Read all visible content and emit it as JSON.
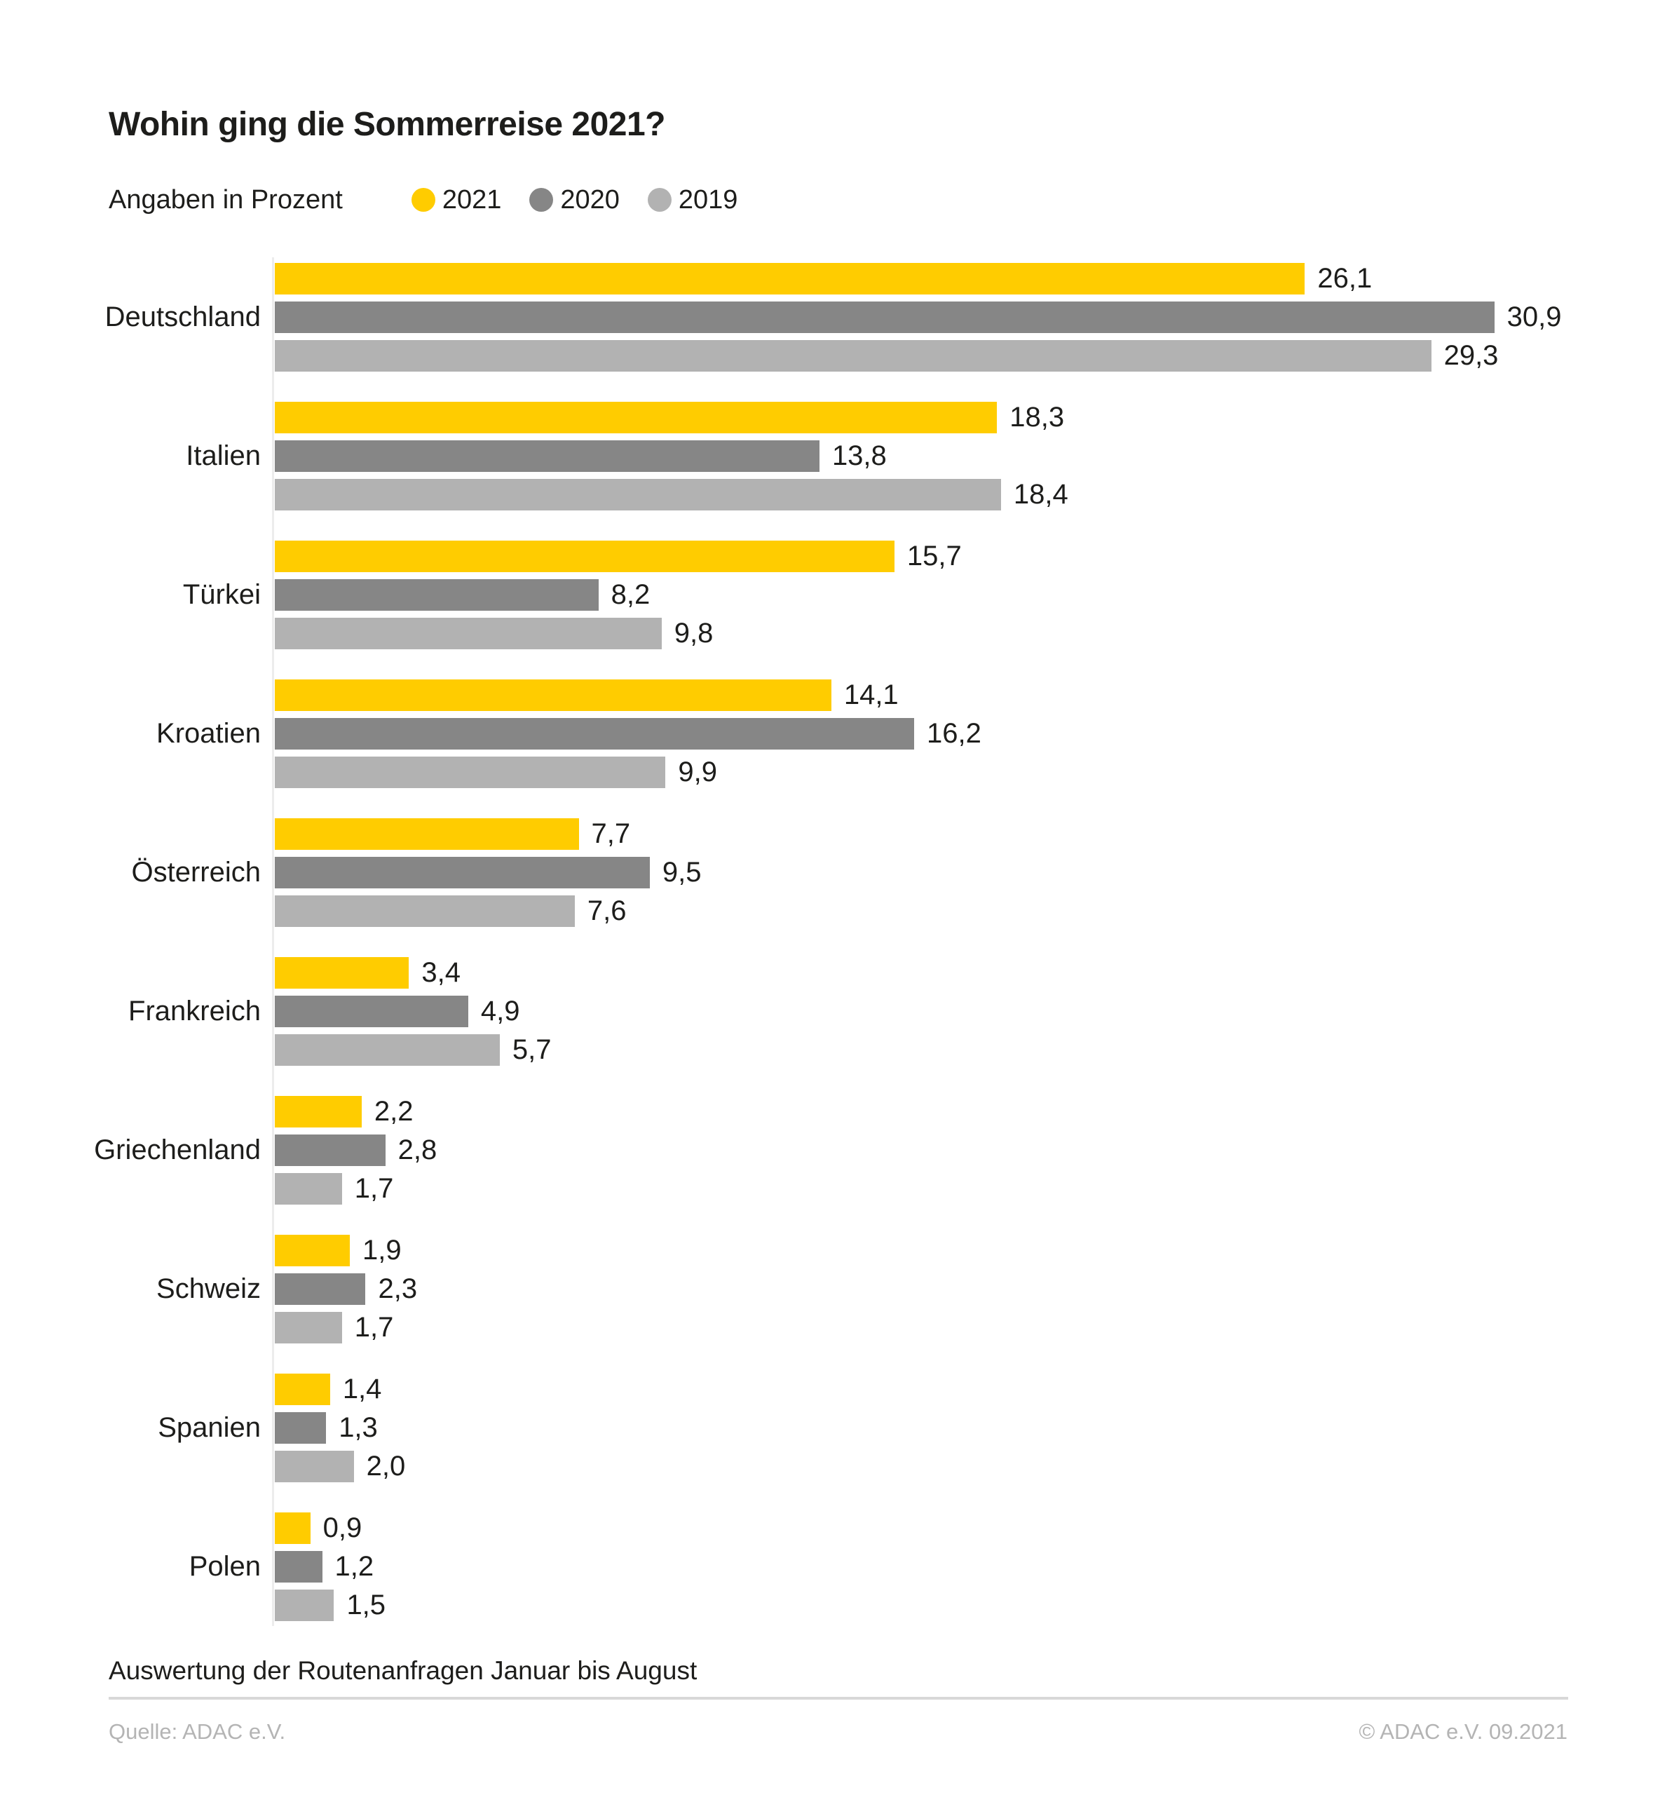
{
  "page": {
    "title": "Wohin ging die Sommerreise 2021?",
    "legend_label": "Angaben in Prozent",
    "note": "Auswertung der Routenanfragen Januar bis August",
    "source": "Quelle: ADAC e.V.",
    "copyright": "© ADAC e.V. 09.2021"
  },
  "colors": {
    "accent_yellow": "#FFCC00",
    "dark_gray": "#868686",
    "light_gray": "#B2B2B2",
    "text": "#1D1D1B",
    "muted_text": "#B4B4B4",
    "divider": "#D8D8D8",
    "axis_line": "#ECECEC"
  },
  "chart_data": {
    "type": "bar",
    "orientation": "horizontal",
    "title": "Wohin ging die Sommerreise 2021?",
    "subtitle": "Angaben in Prozent",
    "unit": "percent",
    "decimal_separator": ",",
    "legend_position": "top",
    "grid": false,
    "xlim": [
      0,
      32
    ],
    "categories": [
      "Deutschland",
      "Italien",
      "Türkei",
      "Kroatien",
      "Österreich",
      "Frankreich",
      "Griechenland",
      "Schweiz",
      "Spanien",
      "Polen"
    ],
    "series": [
      {
        "name": "2021",
        "color": "#FFCC00",
        "values": [
          26.1,
          18.3,
          15.7,
          14.1,
          7.7,
          3.4,
          2.2,
          1.9,
          1.4,
          0.9
        ]
      },
      {
        "name": "2020",
        "color": "#868686",
        "values": [
          30.9,
          13.8,
          8.2,
          16.2,
          9.5,
          4.9,
          2.8,
          2.3,
          1.3,
          1.2
        ]
      },
      {
        "name": "2019",
        "color": "#B2B2B2",
        "values": [
          29.3,
          18.4,
          9.8,
          9.9,
          7.6,
          5.7,
          1.7,
          1.7,
          2.0,
          1.5
        ]
      }
    ]
  }
}
